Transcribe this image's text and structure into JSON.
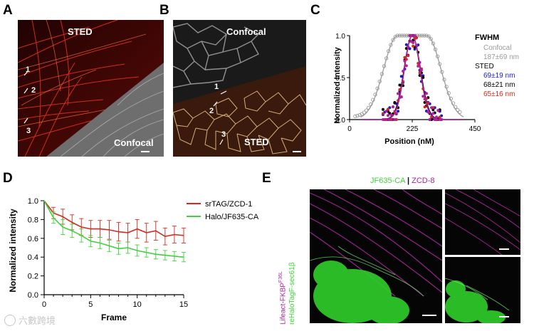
{
  "figure": {
    "panels": {
      "a": {
        "letter": "A",
        "top_label": "STED",
        "bottom_label": "Confocal",
        "markers": [
          "1",
          "2",
          "3"
        ]
      },
      "b": {
        "letter": "B",
        "top_label": "Confocal",
        "bottom_label": "STED",
        "markers": [
          "1",
          "2",
          "3"
        ]
      },
      "c": {
        "letter": "C"
      },
      "d": {
        "letter": "D"
      },
      "e": {
        "letter": "E",
        "header_green": "JF635-CA",
        "header_sep": "|",
        "header_magenta": "ZCD-8",
        "side_label_magenta": "Lifeact-FKBP",
        "side_label_magenta_sup": "F36L",
        "side_label_green": "reHaloTagF-sec61β"
      }
    },
    "colors": {
      "sted_red": "#d42a1c",
      "halo_green": "#3fd23a",
      "zcd_magenta": "#b0209c",
      "confocal_gray": "#9a9a9a",
      "sted_blue": "#1a1ad0"
    },
    "watermark": "六數跨境"
  },
  "chart_data": [
    {
      "type": "scatter",
      "panel": "C",
      "xlabel": "Position (nM)",
      "ylabel": "Normalized Intensity",
      "xlim": [
        0,
        450
      ],
      "ylim": [
        0,
        1.0
      ],
      "xticks": [
        "0",
        "225",
        "450"
      ],
      "yticks": [
        "0.0",
        "0.5",
        "1.0"
      ],
      "legend": {
        "title": "FWHM",
        "entries": [
          {
            "text": "Confocal",
            "color": "#9a9a9a"
          },
          {
            "text": "187±69 nm",
            "color": "#9a9a9a"
          },
          {
            "text": "STED",
            "color": "#000000"
          },
          {
            "text": "69±19 nm",
            "color": "#1a1ad0"
          },
          {
            "text": "68±21 nm",
            "color": "#000000"
          },
          {
            "text": "65±16 nm",
            "color": "#d42a1c"
          }
        ]
      },
      "series": [
        {
          "color": "#9a9a9a",
          "center": 225,
          "fwhm": 187,
          "points": true,
          "fit": "plateau"
        },
        {
          "color": "#1a1ad0",
          "center": 225,
          "fwhm": 69
        },
        {
          "color": "#000000",
          "center": 225,
          "fwhm": 68
        },
        {
          "color": "#d42a1c",
          "center": 225,
          "fwhm": 65
        },
        {
          "color": "#b0209c",
          "center": 225,
          "fwhm": 66
        }
      ]
    },
    {
      "type": "line",
      "panel": "D",
      "xlabel": "Frame",
      "ylabel": "Normalized intensity",
      "xlim": [
        0,
        15
      ],
      "ylim": [
        0.0,
        1.0
      ],
      "xticks": [
        "0",
        "5",
        "10",
        "15"
      ],
      "yticks": [
        "0.0",
        "0.2",
        "0.4",
        "0.6",
        "0.8",
        "1.0"
      ],
      "x": [
        0,
        1,
        2,
        3,
        4,
        5,
        6,
        7,
        8,
        9,
        10,
        11,
        12,
        13,
        14,
        15
      ],
      "series": [
        {
          "name": "srTAG/ZCD-1",
          "color": "#d42a1c",
          "values": [
            1.0,
            0.87,
            0.83,
            0.77,
            0.72,
            0.7,
            0.7,
            0.69,
            0.67,
            0.66,
            0.7,
            0.66,
            0.68,
            0.62,
            0.64,
            0.63
          ],
          "errors": [
            0,
            0.06,
            0.08,
            0.08,
            0.09,
            0.09,
            0.09,
            0.1,
            0.1,
            0.1,
            0.1,
            0.1,
            0.1,
            0.09,
            0.09,
            0.08
          ]
        },
        {
          "name": "Halo/JF635-CA",
          "color": "#3fd23a",
          "values": [
            1.0,
            0.82,
            0.72,
            0.68,
            0.63,
            0.57,
            0.55,
            0.52,
            0.49,
            0.5,
            0.47,
            0.45,
            0.43,
            0.42,
            0.41,
            0.4
          ],
          "errors": [
            0,
            0.06,
            0.08,
            0.07,
            0.07,
            0.06,
            0.06,
            0.06,
            0.06,
            0.06,
            0.06,
            0.05,
            0.05,
            0.05,
            0.05,
            0.05
          ]
        }
      ]
    }
  ]
}
